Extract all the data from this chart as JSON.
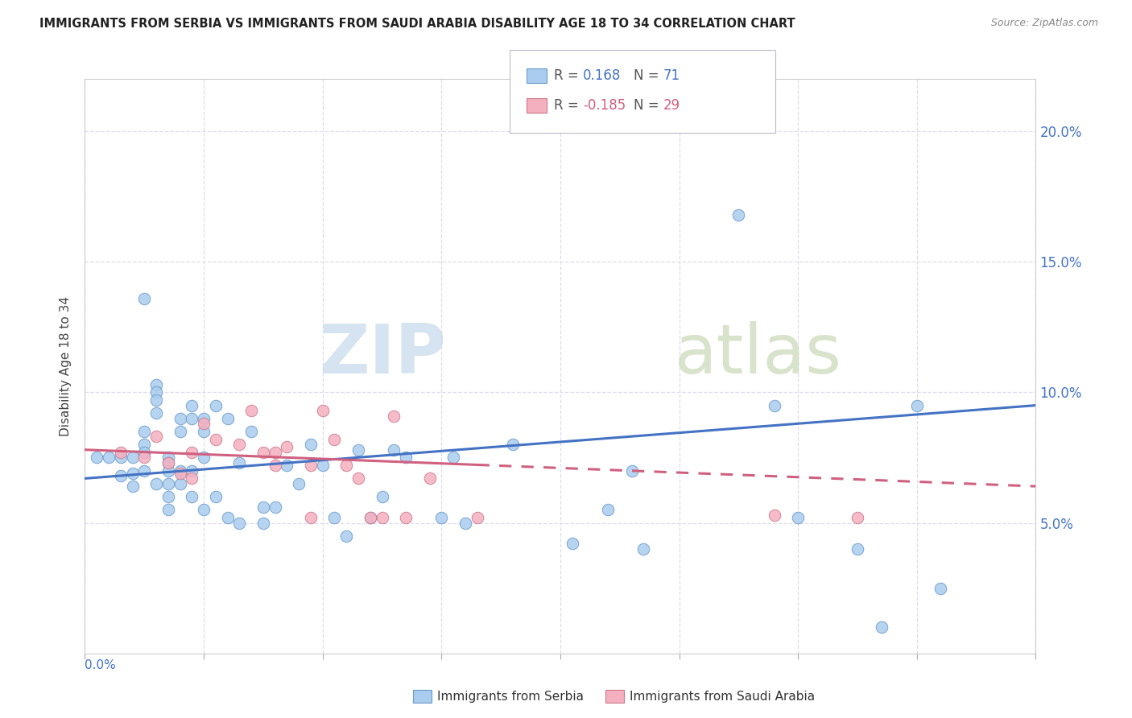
{
  "title": "IMMIGRANTS FROM SERBIA VS IMMIGRANTS FROM SAUDI ARABIA DISABILITY AGE 18 TO 34 CORRELATION CHART",
  "source": "Source: ZipAtlas.com",
  "ylabel": "Disability Age 18 to 34",
  "y_ticks": [
    0.05,
    0.1,
    0.15,
    0.2
  ],
  "y_tick_labels": [
    "5.0%",
    "10.0%",
    "15.0%",
    "20.0%"
  ],
  "x_range": [
    0.0,
    0.08
  ],
  "y_range": [
    0.0,
    0.22
  ],
  "serbia_R": 0.168,
  "serbia_N": 71,
  "saudi_R": -0.185,
  "saudi_N": 29,
  "serbia_color": "#aaccee",
  "saudi_color": "#f5b0c0",
  "serbia_edge_color": "#6699cc",
  "saudi_edge_color": "#cc7788",
  "serbia_line_color": "#4472c4",
  "saudi_line_color": "#d06080",
  "bg_color": "#ffffff",
  "grid_color": "#ddddee",
  "serbia_points_x": [
    0.001,
    0.002,
    0.003,
    0.003,
    0.004,
    0.004,
    0.004,
    0.005,
    0.005,
    0.005,
    0.005,
    0.005,
    0.006,
    0.006,
    0.006,
    0.006,
    0.006,
    0.007,
    0.007,
    0.007,
    0.007,
    0.007,
    0.007,
    0.008,
    0.008,
    0.008,
    0.008,
    0.009,
    0.009,
    0.009,
    0.009,
    0.01,
    0.01,
    0.01,
    0.01,
    0.011,
    0.011,
    0.012,
    0.012,
    0.013,
    0.013,
    0.014,
    0.015,
    0.015,
    0.016,
    0.017,
    0.018,
    0.019,
    0.02,
    0.021,
    0.022,
    0.023,
    0.024,
    0.025,
    0.026,
    0.027,
    0.03,
    0.031,
    0.032,
    0.036,
    0.041,
    0.044,
    0.046,
    0.047,
    0.055,
    0.058,
    0.06,
    0.065,
    0.067,
    0.07,
    0.072
  ],
  "serbia_points_y": [
    0.075,
    0.075,
    0.075,
    0.068,
    0.075,
    0.069,
    0.064,
    0.136,
    0.085,
    0.08,
    0.077,
    0.07,
    0.103,
    0.1,
    0.097,
    0.092,
    0.065,
    0.075,
    0.073,
    0.07,
    0.065,
    0.06,
    0.055,
    0.09,
    0.085,
    0.07,
    0.065,
    0.095,
    0.09,
    0.07,
    0.06,
    0.09,
    0.085,
    0.075,
    0.055,
    0.095,
    0.06,
    0.09,
    0.052,
    0.073,
    0.05,
    0.085,
    0.056,
    0.05,
    0.056,
    0.072,
    0.065,
    0.08,
    0.072,
    0.052,
    0.045,
    0.078,
    0.052,
    0.06,
    0.078,
    0.075,
    0.052,
    0.075,
    0.05,
    0.08,
    0.042,
    0.055,
    0.07,
    0.04,
    0.168,
    0.095,
    0.052,
    0.04,
    0.01,
    0.095,
    0.025
  ],
  "saudi_points_x": [
    0.003,
    0.005,
    0.006,
    0.007,
    0.008,
    0.009,
    0.009,
    0.01,
    0.011,
    0.013,
    0.014,
    0.015,
    0.016,
    0.016,
    0.017,
    0.019,
    0.019,
    0.02,
    0.021,
    0.022,
    0.023,
    0.024,
    0.025,
    0.026,
    0.027,
    0.029,
    0.033,
    0.058,
    0.065
  ],
  "saudi_points_y": [
    0.077,
    0.075,
    0.083,
    0.073,
    0.069,
    0.077,
    0.067,
    0.088,
    0.082,
    0.08,
    0.093,
    0.077,
    0.077,
    0.072,
    0.079,
    0.072,
    0.052,
    0.093,
    0.082,
    0.072,
    0.067,
    0.052,
    0.052,
    0.091,
    0.052,
    0.067,
    0.052,
    0.053,
    0.052
  ]
}
